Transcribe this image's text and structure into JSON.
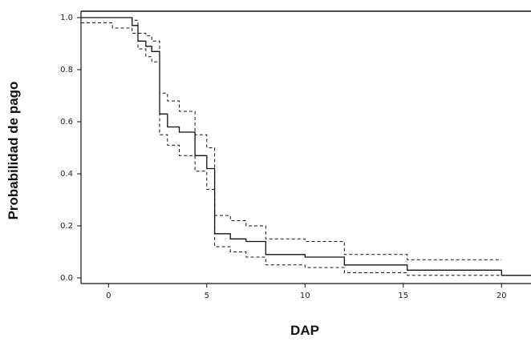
{
  "chart_data": {
    "type": "line",
    "title": "",
    "xlabel": "DAP",
    "ylabel": "Probabilidad de pago",
    "xlim": [
      -1.4,
      21.5
    ],
    "ylim": [
      0.0,
      1.02
    ],
    "x_ticks": [
      0,
      5,
      10,
      15,
      20
    ],
    "x_tick_labels": [
      "0",
      "5",
      "10",
      "15",
      "20"
    ],
    "y_ticks": [
      0.0,
      0.2,
      0.4,
      0.6,
      0.8,
      1.0
    ],
    "y_tick_labels": [
      "0.0",
      "0.2",
      "0.4",
      "0.6",
      "0.8",
      "1.0"
    ],
    "grid": false,
    "legend": "none",
    "reference_line_y": 1.0,
    "line_color": "#111111",
    "series": [
      {
        "style": "solid",
        "x": [
          -1.4,
          1.2,
          1.2,
          1.5,
          1.5,
          1.9,
          1.9,
          2.2,
          2.2,
          2.6,
          2.6,
          3.0,
          3.0,
          3.6,
          3.6,
          4.4,
          4.4,
          5.0,
          5.0,
          5.4,
          5.4,
          6.2,
          6.2,
          7.0,
          7.0,
          8.0,
          8.0,
          10.0,
          10.0,
          12.0,
          12.0,
          15.2,
          15.2,
          20.0,
          20.0,
          21.5
        ],
        "y": [
          1.0,
          1.0,
          0.97,
          0.97,
          0.91,
          0.91,
          0.89,
          0.89,
          0.87,
          0.87,
          0.63,
          0.63,
          0.58,
          0.58,
          0.56,
          0.56,
          0.47,
          0.47,
          0.42,
          0.42,
          0.17,
          0.17,
          0.15,
          0.15,
          0.14,
          0.14,
          0.09,
          0.09,
          0.08,
          0.08,
          0.05,
          0.05,
          0.03,
          0.03,
          0.01,
          0.01
        ]
      },
      {
        "style": "dashed",
        "x": [
          -1.4,
          1.2,
          1.2,
          1.5,
          1.5,
          1.9,
          1.9,
          2.2,
          2.2,
          2.6,
          2.6,
          3.0,
          3.0,
          3.6,
          3.6,
          4.4,
          4.4,
          5.0,
          5.0,
          5.4,
          5.4,
          6.2,
          6.2,
          7.0,
          7.0,
          8.0,
          8.0,
          10.0,
          10.0,
          12.0,
          12.0,
          15.2,
          15.2,
          20.0
        ],
        "y": [
          1.0,
          1.0,
          0.99,
          0.99,
          0.94,
          0.94,
          0.93,
          0.93,
          0.91,
          0.91,
          0.71,
          0.71,
          0.68,
          0.68,
          0.64,
          0.64,
          0.55,
          0.55,
          0.5,
          0.5,
          0.24,
          0.24,
          0.22,
          0.22,
          0.2,
          0.2,
          0.15,
          0.15,
          0.14,
          0.14,
          0.09,
          0.09,
          0.07,
          0.07
        ]
      },
      {
        "style": "dashed",
        "x": [
          -1.4,
          0.2,
          0.2,
          1.2,
          1.2,
          1.5,
          1.5,
          1.9,
          1.9,
          2.2,
          2.2,
          2.6,
          2.6,
          3.0,
          3.0,
          3.6,
          3.6,
          4.4,
          4.4,
          5.0,
          5.0,
          5.4,
          5.4,
          6.2,
          6.2,
          7.0,
          7.0,
          8.0,
          8.0,
          10.0,
          10.0,
          12.0,
          12.0,
          15.2,
          15.2,
          20.0
        ],
        "y": [
          0.98,
          0.98,
          0.96,
          0.96,
          0.94,
          0.94,
          0.88,
          0.88,
          0.85,
          0.85,
          0.83,
          0.83,
          0.55,
          0.55,
          0.51,
          0.51,
          0.47,
          0.47,
          0.41,
          0.41,
          0.34,
          0.34,
          0.12,
          0.12,
          0.1,
          0.1,
          0.08,
          0.08,
          0.05,
          0.05,
          0.04,
          0.04,
          0.02,
          0.02,
          0.01,
          0.01
        ]
      }
    ]
  }
}
